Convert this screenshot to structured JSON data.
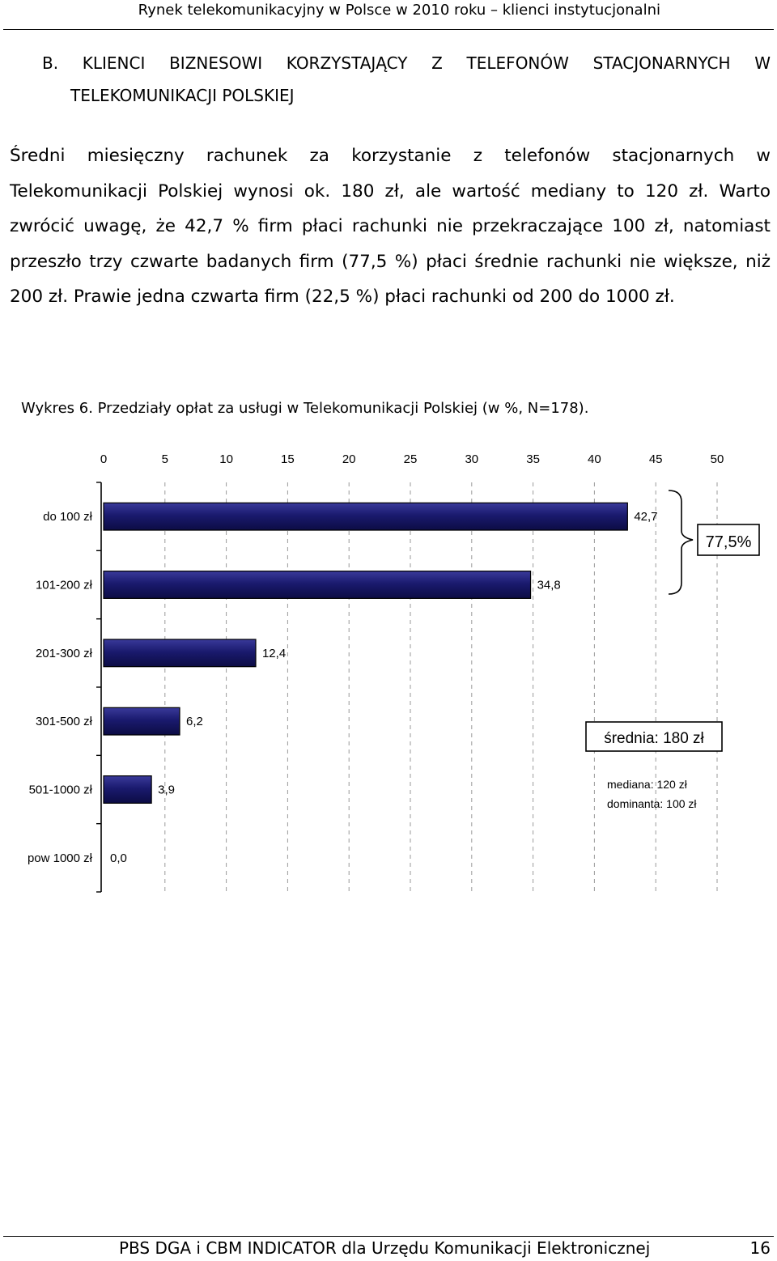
{
  "header": {
    "title": "Rynek telekomunikacyjny w Polsce w 2010 roku – klienci instytucjonalni"
  },
  "section": {
    "heading_line1": "B. KLIENCI BIZNESOWI KORZYSTAJĄCY Z TELEFONÓW STACJONARNYCH W",
    "heading_line2": "TELEKOMUNIKACJI POLSKIEJ"
  },
  "body": {
    "paragraph": "Średni miesięczny rachunek za korzystanie z telefonów stacjonarnych w Telekomunikacji Polskiej wynosi ok. 180 zł, ale wartość mediany to 120 zł. Warto zwrócić uwagę, że 42,7 % firm płaci rachunki nie przekraczające 100 zł, natomiast przeszło trzy czwarte badanych firm (77,5 %) płaci średnie rachunki nie większe, niż 200 zł. Prawie jedna czwarta firm (22,5 %) płaci rachunki od 200 do 1000 zł."
  },
  "figure": {
    "caption": "Wykres 6. Przedziały opłat za usługi w Telekomunikacji Polskiej (w %, N=178)."
  },
  "chart_data": {
    "type": "bar",
    "orientation": "horizontal",
    "categories": [
      "do 100 zł",
      "101-200 zł",
      "201-300 zł",
      "301-500 zł",
      "501-1000 zł",
      "pow 1000 zł"
    ],
    "values": [
      42.7,
      34.8,
      12.4,
      6.2,
      3.9,
      0.0
    ],
    "value_labels": [
      "42,7",
      "34,8",
      "12,4",
      "6,2",
      "3,9",
      "0,0"
    ],
    "xlim": [
      0,
      50
    ],
    "xticks": [
      0,
      5,
      10,
      15,
      20,
      25,
      30,
      35,
      40,
      45,
      50
    ],
    "xaxis_position": "top",
    "grid": "vertical dashed",
    "bar_color": "#1a1a6e",
    "annotations": {
      "bracket_label": "77,5%",
      "mean_label": "średnia: 180 zł",
      "median_label": "mediana: 120 zł",
      "mode_label": "dominanta: 100 zł"
    }
  },
  "footer": {
    "text": "PBS DGA i CBM INDICATOR dla Urzędu Komunikacji Elektronicznej",
    "page_number": "16"
  }
}
